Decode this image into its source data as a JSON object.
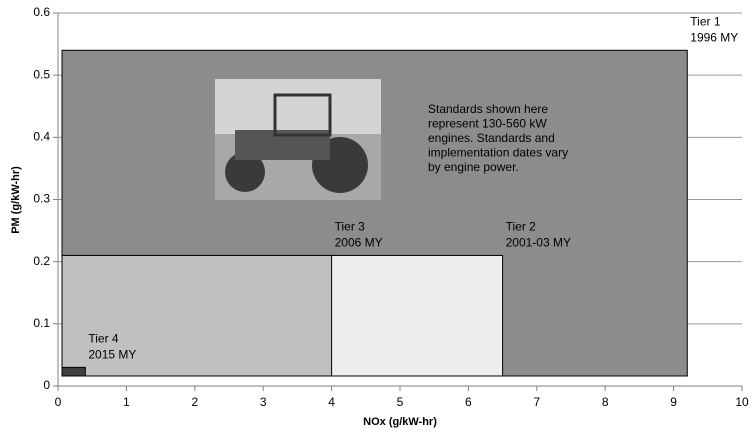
{
  "chart_data": {
    "type": "rect",
    "xlabel": "NOx (g/kW-hr)",
    "ylabel": "PM (g/kW-hr)",
    "xlim": [
      0,
      10
    ],
    "xticks": [
      0,
      1,
      2,
      3,
      4,
      5,
      6,
      7,
      8,
      9,
      10
    ],
    "ylim": [
      0,
      0.6
    ],
    "yticks": [
      0,
      0.1,
      0.2,
      0.3,
      0.4,
      0.5,
      0.6
    ],
    "grid": true,
    "series": [
      {
        "name": "Tier 1",
        "label": "1996 MY",
        "x": 9.2,
        "y": 0.54,
        "color": "#8c8c8c"
      },
      {
        "name": "Tier 2",
        "label": "2001-03 MY",
        "x": 6.5,
        "y": 0.21,
        "color": "#eeeeee"
      },
      {
        "name": "Tier 3",
        "label": "2006 MY",
        "x": 4.0,
        "y": 0.21,
        "color": "#c0c0c0"
      },
      {
        "name": "Tier 4",
        "label": "2015 MY",
        "x": 0.4,
        "y": 0.03,
        "color": "#404040"
      }
    ],
    "annotation": [
      "Standards shown here",
      "represent 130-560 kW",
      "engines.  Standards and",
      "implementation dates vary",
      "by engine power."
    ]
  }
}
